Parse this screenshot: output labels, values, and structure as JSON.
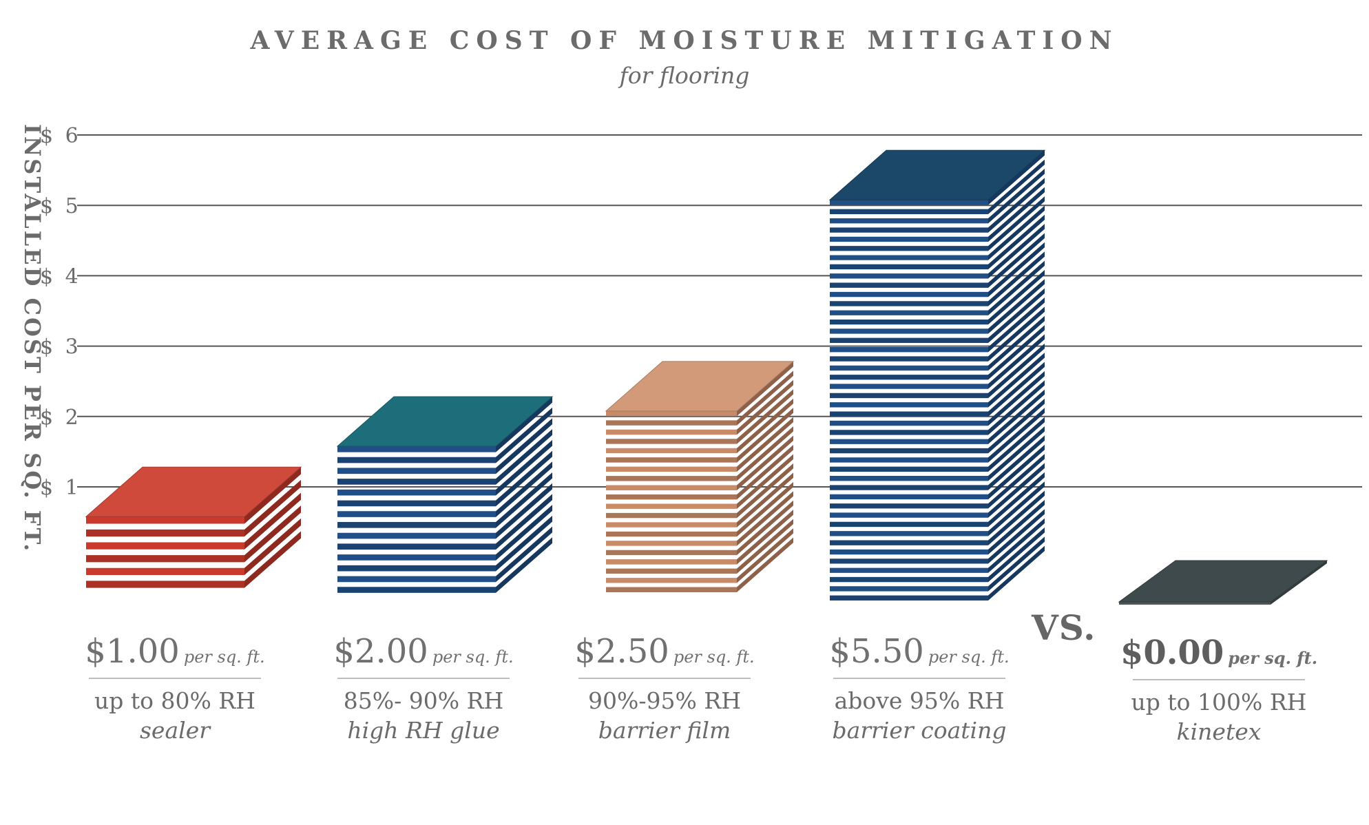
{
  "chart_data": {
    "type": "bar",
    "title": "AVERAGE COST OF MOISTURE MITIGATION",
    "subtitle": "for flooring",
    "ylabel": "INSTALLED COST PER SQ. FT.",
    "ylim": [
      0,
      6
    ],
    "yticks": [
      "$ 1",
      "$ 2",
      "$ 3",
      "$ 4",
      "$ 5",
      "$ 6"
    ],
    "grid": true,
    "separator": "VS.",
    "categories": [
      {
        "price": "$1.00",
        "unit": "per sq. ft.",
        "rh": "up to 80% RH",
        "product": "sealer",
        "value": 1.0,
        "color": "#c93a2c",
        "top": "#d04a3c",
        "layers": 6
      },
      {
        "price": "$2.00",
        "unit": "per sq. ft.",
        "rh": "85%- 90% RH",
        "product": "high RH glue",
        "value": 2.0,
        "color": "#1f4f86",
        "top": "#1d6e7a",
        "layers": 14
      },
      {
        "price": "$2.50",
        "unit": "per sq. ft.",
        "rh": "90%-95% RH",
        "product": "barrier film",
        "value": 2.5,
        "color": "#c98a68",
        "top": "#d29a78",
        "layers": 20
      },
      {
        "price": "$5.50",
        "unit": "per sq. ft.",
        "rh": "above 95% RH",
        "product": "barrier coating",
        "value": 5.5,
        "color": "#1f4f86",
        "top": "#1b4868",
        "layers": 44
      },
      {
        "price": "$0.00",
        "unit": "per sq. ft.",
        "rh": "up to 100% RH",
        "product": "kinetex",
        "value": 0.0,
        "color": "#4a5558",
        "top": "#3f4a4c",
        "layers": 1
      }
    ]
  }
}
